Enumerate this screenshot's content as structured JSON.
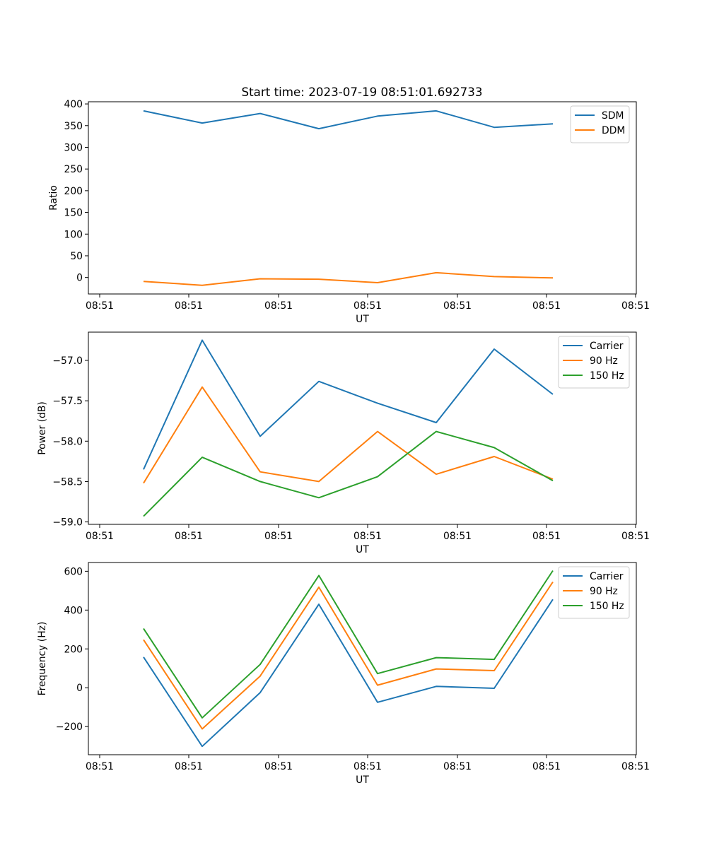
{
  "title": "Start time: 2023-07-19 08:51:01.692733",
  "colors": {
    "blue": "#1f77b4",
    "orange": "#ff7f0e",
    "green": "#2ca02c"
  },
  "chart_data": [
    {
      "type": "line",
      "title": "Start time: 2023-07-19 08:51:01.692733",
      "xlabel": "UT",
      "ylabel": "Ratio",
      "x_tick_labels": [
        "08:51",
        "08:51",
        "08:51",
        "08:51",
        "08:51",
        "08:51",
        "08:51"
      ],
      "y_ticks": [
        0,
        50,
        100,
        150,
        200,
        250,
        300,
        350,
        400
      ],
      "y_tick_labels": [
        "0",
        "50",
        "100",
        "150",
        "200",
        "250",
        "300",
        "350",
        "400"
      ],
      "ylim": [
        -38,
        405
      ],
      "x_index": [
        0,
        1,
        2,
        3,
        4,
        5,
        6,
        7
      ],
      "legend_loc": "upper right",
      "series": [
        {
          "name": "SDM",
          "color": "#1f77b4",
          "values": [
            384,
            356,
            378,
            343,
            372,
            384,
            346,
            354
          ]
        },
        {
          "name": "DDM",
          "color": "#ff7f0e",
          "values": [
            -9,
            -18,
            -3,
            -4,
            -12,
            11,
            2,
            -1
          ]
        }
      ]
    },
    {
      "type": "line",
      "title": "",
      "xlabel": "UT",
      "ylabel": "Power (dB)",
      "x_tick_labels": [
        "08:51",
        "08:51",
        "08:51",
        "08:51",
        "08:51",
        "08:51",
        "08:51"
      ],
      "y_ticks": [
        -59.0,
        -58.5,
        -58.0,
        -57.5,
        -57.0
      ],
      "y_tick_labels": [
        "−59.0",
        "−58.5",
        "−58.0",
        "−57.5",
        "−57.0"
      ],
      "ylim": [
        -59.03,
        -56.65
      ],
      "x_index": [
        0,
        1,
        2,
        3,
        4,
        5,
        6,
        7
      ],
      "legend_loc": "upper right",
      "series": [
        {
          "name": "Carrier",
          "color": "#1f77b4",
          "values": [
            -58.35,
            -56.75,
            -57.94,
            -57.26,
            -57.53,
            -57.77,
            -56.86,
            -57.42
          ]
        },
        {
          "name": "90 Hz",
          "color": "#ff7f0e",
          "values": [
            -58.52,
            -57.33,
            -58.38,
            -58.5,
            -57.88,
            -58.41,
            -58.19,
            -58.47
          ]
        },
        {
          "name": "150 Hz",
          "color": "#2ca02c",
          "values": [
            -58.93,
            -58.2,
            -58.5,
            -58.7,
            -58.44,
            -57.88,
            -58.08,
            -58.49
          ]
        }
      ]
    },
    {
      "type": "line",
      "title": "",
      "xlabel": "UT",
      "ylabel": "Frequency (Hz)",
      "x_tick_labels": [
        "08:51",
        "08:51",
        "08:51",
        "08:51",
        "08:51",
        "08:51",
        "08:51"
      ],
      "y_ticks": [
        -200,
        0,
        200,
        400,
        600
      ],
      "y_tick_labels": [
        "−200",
        "0",
        "200",
        "400",
        "600"
      ],
      "ylim": [
        -345,
        645
      ],
      "x_index": [
        0,
        1,
        2,
        3,
        4,
        5,
        6,
        7
      ],
      "legend_loc": "upper right",
      "series": [
        {
          "name": "Carrier",
          "color": "#1f77b4",
          "values": [
            158,
            -302,
            -25,
            430,
            -75,
            7,
            -3,
            455
          ]
        },
        {
          "name": "90 Hz",
          "color": "#ff7f0e",
          "values": [
            247,
            -212,
            60,
            518,
            13,
            97,
            88,
            545
          ]
        },
        {
          "name": "150 Hz",
          "color": "#2ca02c",
          "values": [
            305,
            -155,
            120,
            578,
            73,
            155,
            146,
            603
          ]
        }
      ]
    }
  ]
}
